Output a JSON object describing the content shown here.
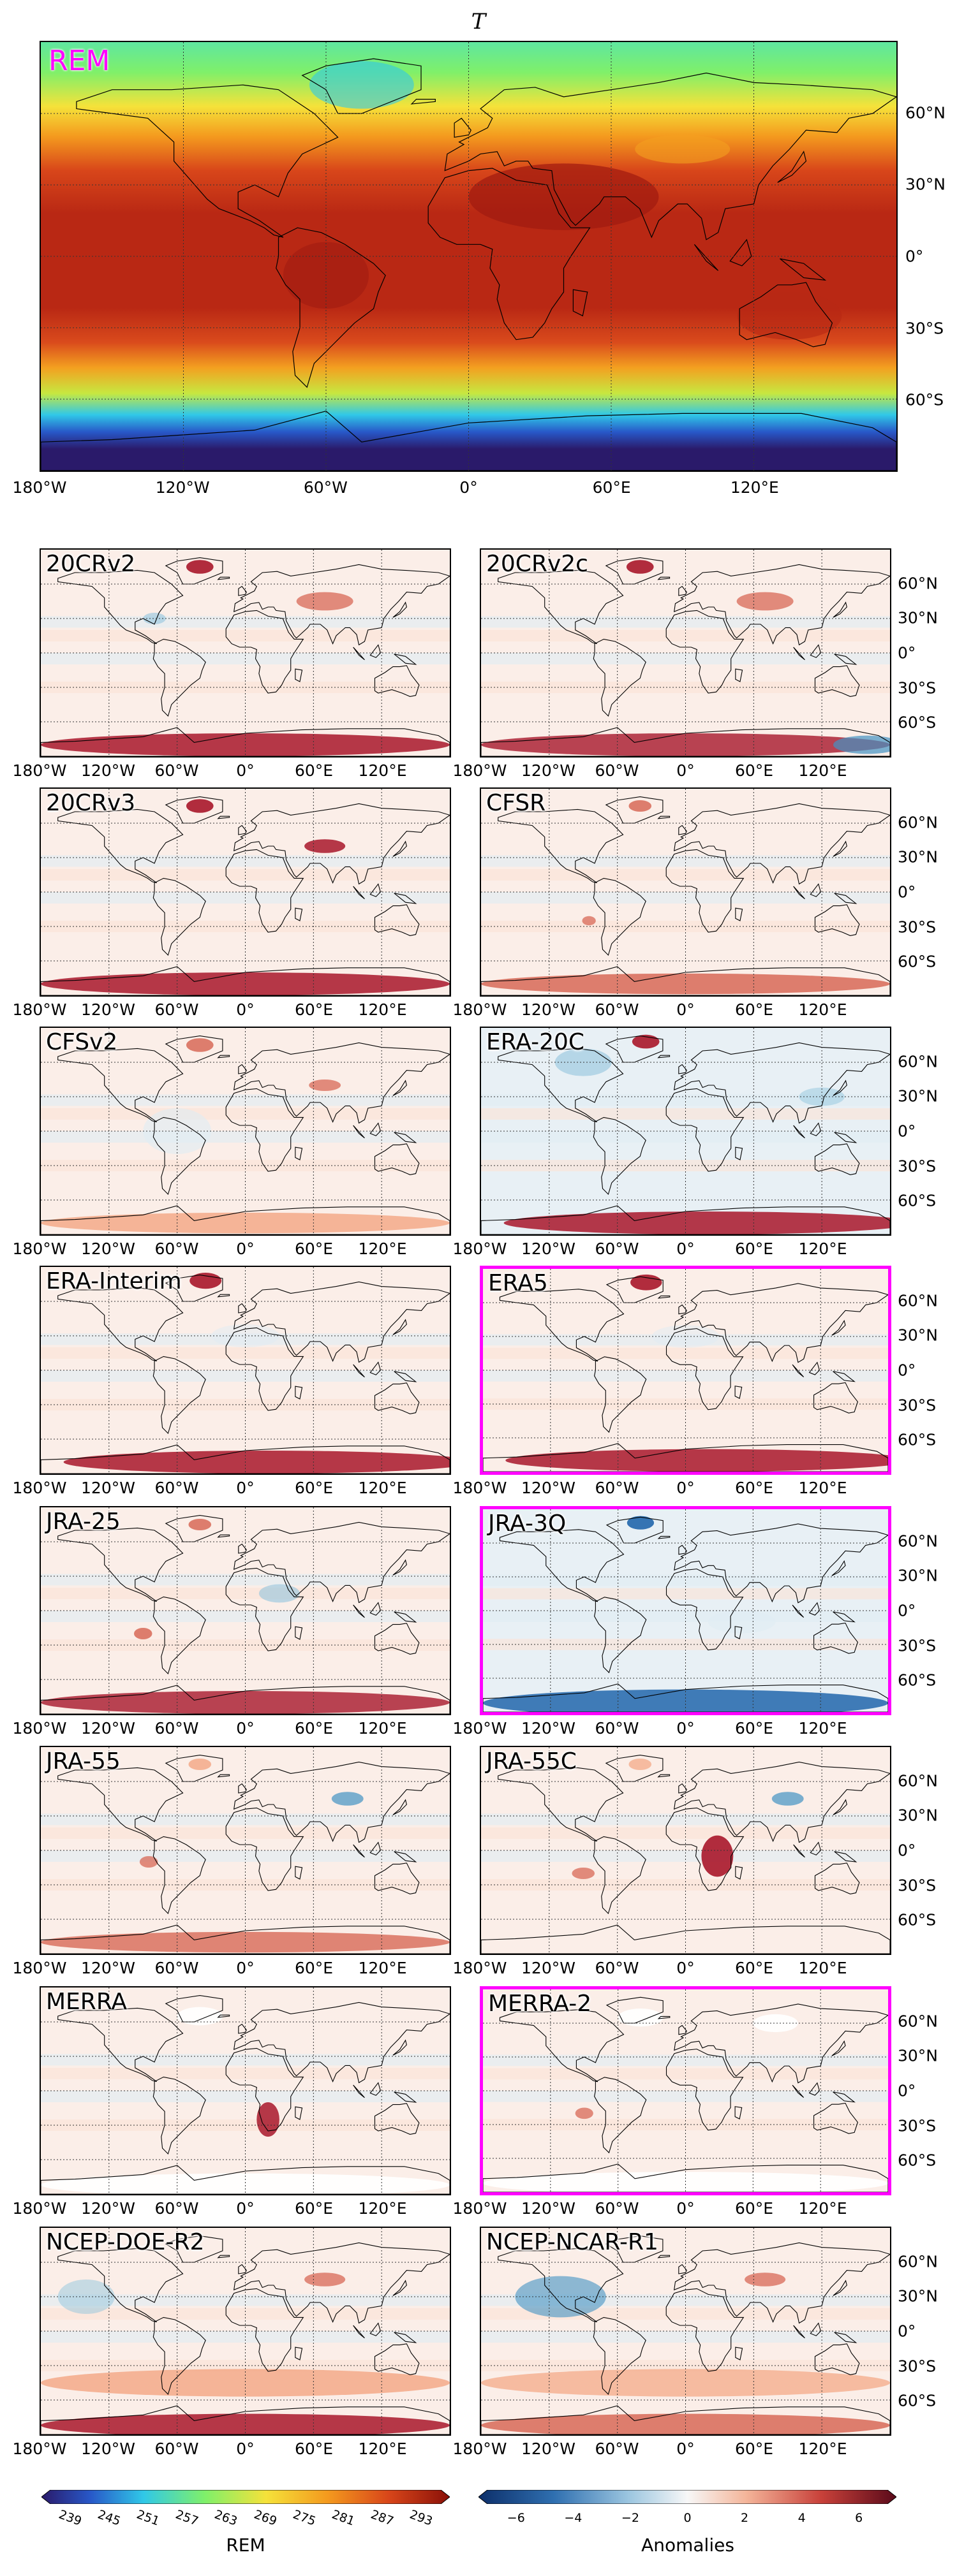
{
  "figure_title": "T",
  "main_panel": {
    "label": "REM"
  },
  "lon_ticks": [
    "180°W",
    "120°W",
    "60°W",
    "0°",
    "60°E",
    "120°E"
  ],
  "lat_ticks": [
    "60°N",
    "30°N",
    "0°",
    "30°S",
    "60°S"
  ],
  "panels": [
    {
      "label": "20CRv2",
      "highlight": false
    },
    {
      "label": "20CRv2c",
      "highlight": false
    },
    {
      "label": "20CRv3",
      "highlight": false
    },
    {
      "label": "CFSR",
      "highlight": false
    },
    {
      "label": "CFSv2",
      "highlight": false
    },
    {
      "label": "ERA-20C",
      "highlight": false
    },
    {
      "label": "ERA-Interim",
      "highlight": false
    },
    {
      "label": "ERA5",
      "highlight": true
    },
    {
      "label": "JRA-25",
      "highlight": false
    },
    {
      "label": "JRA-3Q",
      "highlight": true
    },
    {
      "label": "JRA-55",
      "highlight": false
    },
    {
      "label": "JRA-55C",
      "highlight": false
    },
    {
      "label": "MERRA",
      "highlight": false
    },
    {
      "label": "MERRA-2",
      "highlight": true
    },
    {
      "label": "NCEP-DOE-R2",
      "highlight": false
    },
    {
      "label": "NCEP-NCAR-R1",
      "highlight": false
    }
  ],
  "colorbars": {
    "rem": {
      "label": "REM",
      "ticks": [
        "239",
        "245",
        "251",
        "257",
        "263",
        "269",
        "275",
        "281",
        "287",
        "293"
      ]
    },
    "anomalies": {
      "label": "Anomalies",
      "ticks": [
        "−6",
        "−4",
        "−2",
        "0",
        "2",
        "4",
        "6"
      ]
    }
  },
  "highlight_color": "#ff00ff"
}
